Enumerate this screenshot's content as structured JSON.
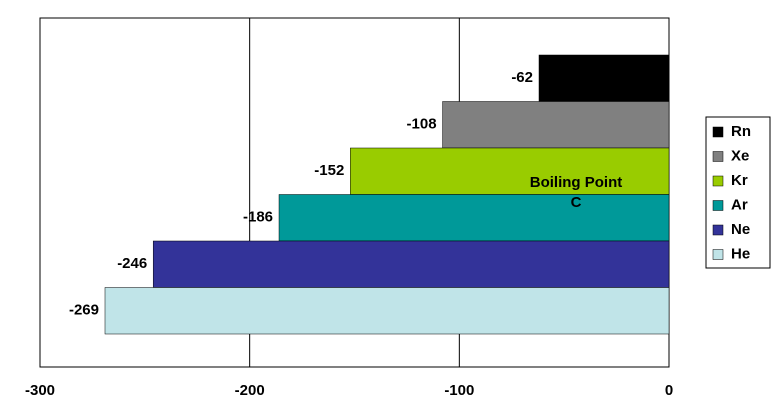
{
  "chart_data": {
    "type": "bar",
    "series": [
      {
        "name": "Rn",
        "color": "#000000",
        "values": [
          -62
        ]
      },
      {
        "name": "Xe",
        "color": "#808080",
        "values": [
          -108
        ]
      },
      {
        "name": "Kr",
        "color": "#99cc00",
        "values": [
          -152
        ]
      },
      {
        "name": "Ar",
        "color": "#009999",
        "values": [
          -186
        ]
      },
      {
        "name": "Ne",
        "color": "#333399",
        "values": [
          -246
        ]
      },
      {
        "name": "He",
        "color": "#c0e4e8",
        "values": [
          -269
        ]
      }
    ],
    "annotation": [
      "Boiling Point",
      "C"
    ],
    "xlim": [
      -300,
      0
    ],
    "xticks": [
      -300,
      -200,
      -100,
      0
    ],
    "grid": true
  }
}
